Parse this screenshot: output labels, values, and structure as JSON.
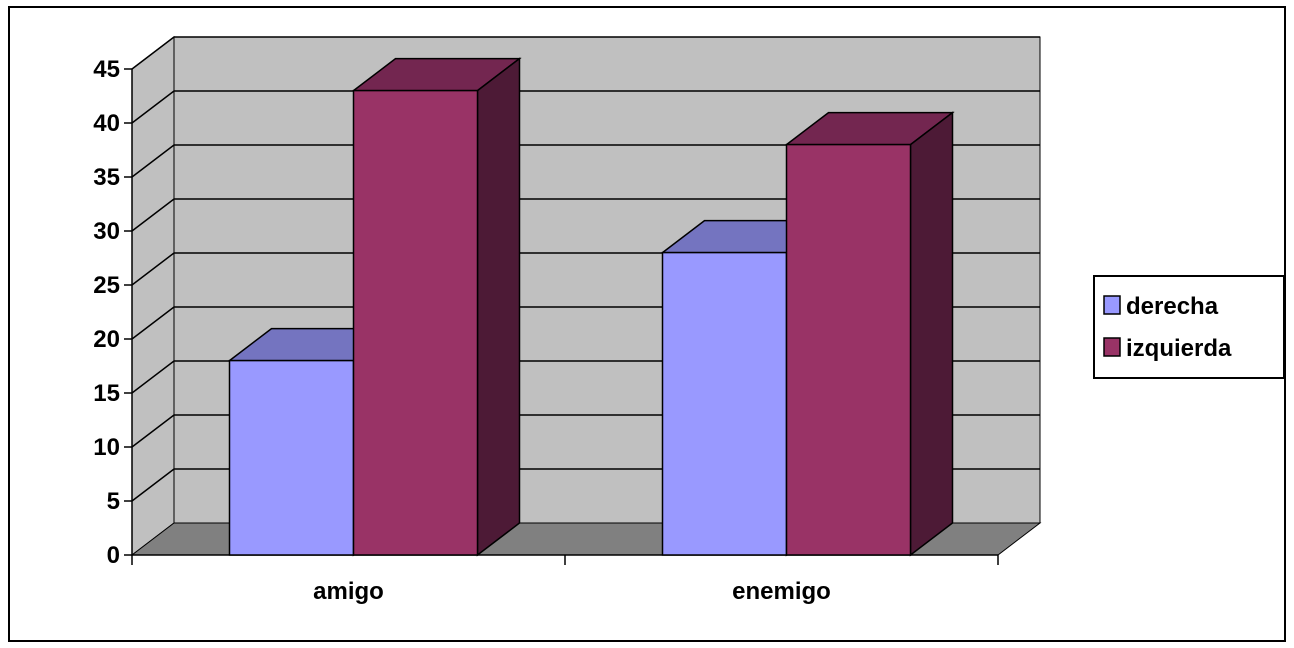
{
  "chart_data": {
    "type": "bar",
    "style": "3d-clustered-column",
    "categories": [
      "amigo",
      "enemigo"
    ],
    "series": [
      {
        "name": "derecha",
        "values": [
          18,
          28
        ],
        "color": "#9999ff",
        "top_color": "#7474c0",
        "side_color": "#7474c0"
      },
      {
        "name": "izquierda",
        "values": [
          43,
          38
        ],
        "color": "#993366",
        "top_color": "#732650",
        "side_color": "#4d1a36"
      }
    ],
    "title": "",
    "xlabel": "",
    "ylabel": "",
    "ylim": [
      0,
      45
    ],
    "ytick_step": 5,
    "yticks": [
      "0",
      "5",
      "10",
      "15",
      "20",
      "25",
      "30",
      "35",
      "40",
      "45"
    ],
    "grid": true,
    "legend_position": "right",
    "wall_color": "#c0c0c0",
    "floor_color": "#808080"
  }
}
